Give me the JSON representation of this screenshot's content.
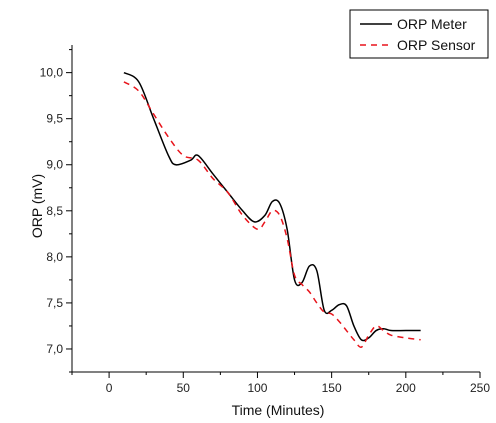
{
  "chart_data": {
    "type": "line",
    "xlabel": "Time (Minutes)",
    "ylabel": "ORP (mV)",
    "xlim": [
      -25,
      250
    ],
    "ylim": [
      6.75,
      10.3
    ],
    "x_ticks": [
      0,
      50,
      100,
      150,
      200,
      250
    ],
    "x_tick_labels": [
      "0",
      "50",
      "100",
      "150",
      "200",
      "250"
    ],
    "y_ticks": [
      7.0,
      7.5,
      8.0,
      8.5,
      9.0,
      9.5,
      10.0
    ],
    "y_tick_labels": [
      "7,0",
      "7,5",
      "8,0",
      "8,5",
      "9,0",
      "9,5",
      "10,0"
    ],
    "grid": false,
    "legend_position": "top-right",
    "series": [
      {
        "name": "ORP Meter",
        "color": "#000000",
        "dash": "solid",
        "x": [
          10,
          20,
          30,
          40,
          45,
          55,
          60,
          70,
          80,
          90,
          98,
          105,
          110,
          115,
          120,
          125,
          130,
          135,
          140,
          145,
          150,
          155,
          160,
          165,
          170,
          175,
          180,
          185,
          190,
          200,
          210
        ],
        "values": [
          10.0,
          9.9,
          9.5,
          9.1,
          9.0,
          9.05,
          9.1,
          8.9,
          8.7,
          8.5,
          8.38,
          8.45,
          8.6,
          8.58,
          8.3,
          7.75,
          7.72,
          7.9,
          7.85,
          7.42,
          7.42,
          7.48,
          7.47,
          7.25,
          7.1,
          7.12,
          7.2,
          7.22,
          7.2,
          7.2,
          7.2
        ]
      },
      {
        "name": "ORP Sensor",
        "color": "#e8141b",
        "dash": "dashed",
        "x": [
          10,
          20,
          30,
          40,
          50,
          60,
          70,
          80,
          90,
          100,
          105,
          110,
          115,
          120,
          125,
          130,
          135,
          140,
          145,
          150,
          155,
          160,
          165,
          170,
          175,
          180,
          185,
          190,
          200,
          210
        ],
        "values": [
          9.9,
          9.8,
          9.55,
          9.3,
          9.1,
          9.05,
          8.85,
          8.7,
          8.45,
          8.3,
          8.38,
          8.5,
          8.45,
          8.2,
          7.8,
          7.7,
          7.62,
          7.5,
          7.4,
          7.38,
          7.3,
          7.2,
          7.1,
          7.02,
          7.15,
          7.25,
          7.2,
          7.15,
          7.12,
          7.1
        ]
      }
    ]
  }
}
